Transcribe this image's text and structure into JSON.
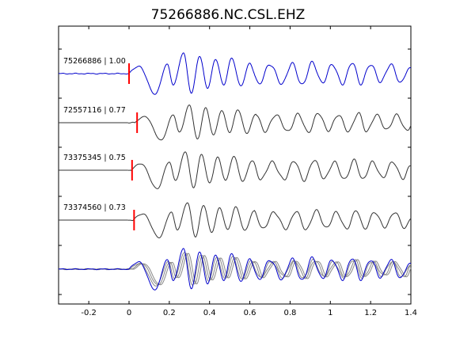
{
  "chart_data": {
    "type": "line",
    "title": "75266886.NC.CSL.EHZ",
    "xlabel": "",
    "ylabel": "",
    "xlim": [
      -0.35,
      1.4
    ],
    "x_ticks": [
      -0.2,
      0,
      0.2,
      0.4,
      0.6,
      0.8,
      1,
      1.2,
      1.4
    ],
    "x_tick_labels": [
      "-0.2",
      "0",
      "0.2",
      "0.4",
      "0.6",
      "0.8",
      "1",
      "1.2",
      "1.4"
    ],
    "grid": false,
    "colors": {
      "reference": "#0000cc",
      "trace": "#333333",
      "overlay_gray": "#888888",
      "pick": "#ff0000"
    },
    "traces": [
      {
        "label": "75266886 | 1.00",
        "event_id": "75266886",
        "cc": 1.0,
        "pick_time": 0.0,
        "reference": true
      },
      {
        "label": "72557116 | 0.77",
        "event_id": "72557116",
        "cc": 0.77,
        "pick_time": 0.04,
        "reference": false
      },
      {
        "label": "73375345 | 0.75",
        "event_id": "73375345",
        "cc": 0.75,
        "pick_time": 0.015,
        "reference": false
      },
      {
        "label": "73374560 | 0.73",
        "event_id": "73374560",
        "cc": 0.73,
        "pick_time": 0.025,
        "reference": false
      }
    ],
    "waveform_peaks": [
      {
        "t": 0.05,
        "a": 0.35
      },
      {
        "t": 0.13,
        "a": -1.0
      },
      {
        "t": 0.19,
        "a": 0.45
      },
      {
        "t": 0.22,
        "a": -0.55
      },
      {
        "t": 0.27,
        "a": 1.0
      },
      {
        "t": 0.31,
        "a": -0.95
      },
      {
        "t": 0.35,
        "a": 0.85
      },
      {
        "t": 0.39,
        "a": -0.7
      },
      {
        "t": 0.43,
        "a": 0.7
      },
      {
        "t": 0.47,
        "a": -0.55
      },
      {
        "t": 0.51,
        "a": 0.75
      },
      {
        "t": 0.555,
        "a": -0.6
      },
      {
        "t": 0.6,
        "a": 0.5
      },
      {
        "t": 0.645,
        "a": -0.5
      },
      {
        "t": 0.7,
        "a": 0.45
      },
      {
        "t": 0.76,
        "a": -0.5
      },
      {
        "t": 0.81,
        "a": 0.5
      },
      {
        "t": 0.86,
        "a": -0.55
      },
      {
        "t": 0.91,
        "a": 0.55
      },
      {
        "t": 0.96,
        "a": -0.45
      },
      {
        "t": 1.01,
        "a": 0.45
      },
      {
        "t": 1.06,
        "a": -0.5
      },
      {
        "t": 1.11,
        "a": 0.55
      },
      {
        "t": 1.15,
        "a": -0.5
      },
      {
        "t": 1.2,
        "a": 0.45
      },
      {
        "t": 1.25,
        "a": -0.4
      },
      {
        "t": 1.3,
        "a": 0.45
      },
      {
        "t": 1.35,
        "a": -0.45
      },
      {
        "t": 1.39,
        "a": 0.25
      }
    ]
  }
}
